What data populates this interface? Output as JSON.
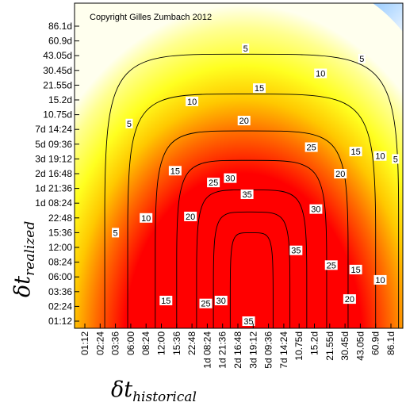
{
  "chart_data": {
    "type": "heatmap",
    "subtype": "filled-contour",
    "annotation": "Copyright Gilles Zumbach 2012",
    "xlabel": {
      "main": "δt",
      "sub": "historical"
    },
    "ylabel": {
      "main": "δt",
      "sub": "realized"
    },
    "x_ticks": [
      "01:12",
      "02:24",
      "03:36",
      "06:00",
      "08:24",
      "12:00",
      "15:36",
      "22:48",
      "1d 08:24",
      "1d 21:36",
      "2d 16:48",
      "3d 19:12",
      "5d 09:36",
      "7d 14:24",
      "10.75d",
      "15.2d",
      "21.55d",
      "30.45d",
      "43.05d",
      "60.9d",
      "86.1d"
    ],
    "y_ticks": [
      "86.1d",
      "60.9d",
      "43.05d",
      "30.45d",
      "21.55d",
      "15.2d",
      "10.75d",
      "7d 14:24",
      "5d 09:36",
      "3d 19:12",
      "2d 16:48",
      "1d 21:36",
      "1d 08:24",
      "22:48",
      "15:36",
      "12:00",
      "08:24",
      "06:00",
      "03:36",
      "02:24",
      "01:12"
    ],
    "contour_levels": [
      5,
      10,
      15,
      20,
      25,
      30,
      35
    ],
    "colormap": {
      "low": "#ffffff",
      "mid": "#ffff00",
      "mid2": "#ff9900",
      "high": "#ff0000",
      "corner": "#99ccff"
    },
    "contour_labels": [
      {
        "text": "5",
        "x": 10.5,
        "y": 18.5
      },
      {
        "text": "5",
        "x": 18.1,
        "y": 17.8
      },
      {
        "text": "5",
        "x": 2.9,
        "y": 13.4
      },
      {
        "text": "5",
        "x": 2.0,
        "y": 6.0
      },
      {
        "text": "5",
        "x": 20.3,
        "y": 11.0
      },
      {
        "text": "10",
        "x": 15.4,
        "y": 16.8
      },
      {
        "text": "10",
        "x": 7.0,
        "y": 14.9
      },
      {
        "text": "10",
        "x": 4.0,
        "y": 7.0
      },
      {
        "text": "10",
        "x": 19.3,
        "y": 11.2
      },
      {
        "text": "10",
        "x": 19.3,
        "y": 2.8
      },
      {
        "text": "15",
        "x": 11.4,
        "y": 15.8
      },
      {
        "text": "15",
        "x": 5.9,
        "y": 10.2
      },
      {
        "text": "15",
        "x": 17.7,
        "y": 11.5
      },
      {
        "text": "15",
        "x": 5.3,
        "y": 1.4
      },
      {
        "text": "15",
        "x": 17.7,
        "y": 3.5
      },
      {
        "text": "20",
        "x": 10.4,
        "y": 13.6
      },
      {
        "text": "20",
        "x": 16.7,
        "y": 10.0
      },
      {
        "text": "20",
        "x": 6.9,
        "y": 7.1
      },
      {
        "text": "20",
        "x": 17.3,
        "y": 1.5
      },
      {
        "text": "25",
        "x": 14.8,
        "y": 11.8
      },
      {
        "text": "25",
        "x": 8.4,
        "y": 9.4
      },
      {
        "text": "25",
        "x": 16.1,
        "y": 3.8
      },
      {
        "text": "25",
        "x": 7.9,
        "y": 1.2
      },
      {
        "text": "30",
        "x": 9.5,
        "y": 9.7
      },
      {
        "text": "30",
        "x": 15.1,
        "y": 7.6
      },
      {
        "text": "30",
        "x": 8.9,
        "y": 1.4
      },
      {
        "text": "35",
        "x": 10.6,
        "y": 8.6
      },
      {
        "text": "35",
        "x": 13.8,
        "y": 4.8
      },
      {
        "text": "35",
        "x": 10.7,
        "y": 0.0
      }
    ]
  }
}
